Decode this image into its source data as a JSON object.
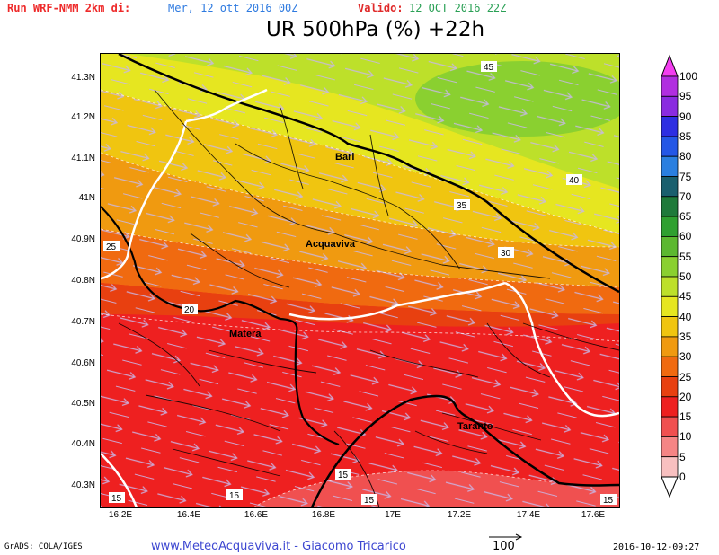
{
  "header": {
    "run_label": "Run WRF-NMM 2km di:",
    "run_date": "Mer, 12 ott 2016 00Z",
    "valid_label": "Valido:",
    "valid_date": "12 OCT 2016 22Z",
    "title": "UR 500hPa (%) +22h"
  },
  "axes": {
    "y_labels": [
      "41.3N",
      "41.2N",
      "41.1N",
      "41N",
      "40.9N",
      "40.8N",
      "40.7N",
      "40.6N",
      "40.5N",
      "40.4N",
      "40.3N"
    ],
    "x_labels": [
      "16.2E",
      "16.4E",
      "16.6E",
      "16.8E",
      "17E",
      "17.2E",
      "17.4E",
      "17.6E"
    ]
  },
  "cities": {
    "bari": "Bari",
    "acquaviva": "Acquaviva",
    "matera": "Matera",
    "taranto": "Taranto"
  },
  "contour_labels": {
    "c45": "45",
    "c40": "40",
    "c35": "35",
    "c30": "30",
    "c25": "25",
    "c20": "20",
    "c15a": "15",
    "c15b": "15",
    "c15c": "15",
    "c15d": "15",
    "c15e": "15"
  },
  "colorbar": {
    "labels": [
      "100",
      "95",
      "90",
      "85",
      "80",
      "75",
      "70",
      "65",
      "60",
      "55",
      "50",
      "45",
      "40",
      "35",
      "30",
      "25",
      "20",
      "15",
      "10",
      "5",
      "0"
    ],
    "colors": [
      "#f33ef0",
      "#b12ee0",
      "#8a2be0",
      "#2e2ee2",
      "#2457e6",
      "#2a7fe0",
      "#1a5f6e",
      "#1f7a3a",
      "#2fa030",
      "#5cb830",
      "#8ad030",
      "#bde02a",
      "#e6e620",
      "#f0c510",
      "#f09a10",
      "#f06a10",
      "#e84010",
      "#ee2020",
      "#f05050",
      "#f58585",
      "#f8c0c0"
    ]
  },
  "footer": {
    "left": "GrADS: COLA/IGES",
    "center": "www.MeteoAcquaviva.it  -  Giacomo Tricarico",
    "wind_ref": "100",
    "right": "2016-10-12-09:27"
  }
}
